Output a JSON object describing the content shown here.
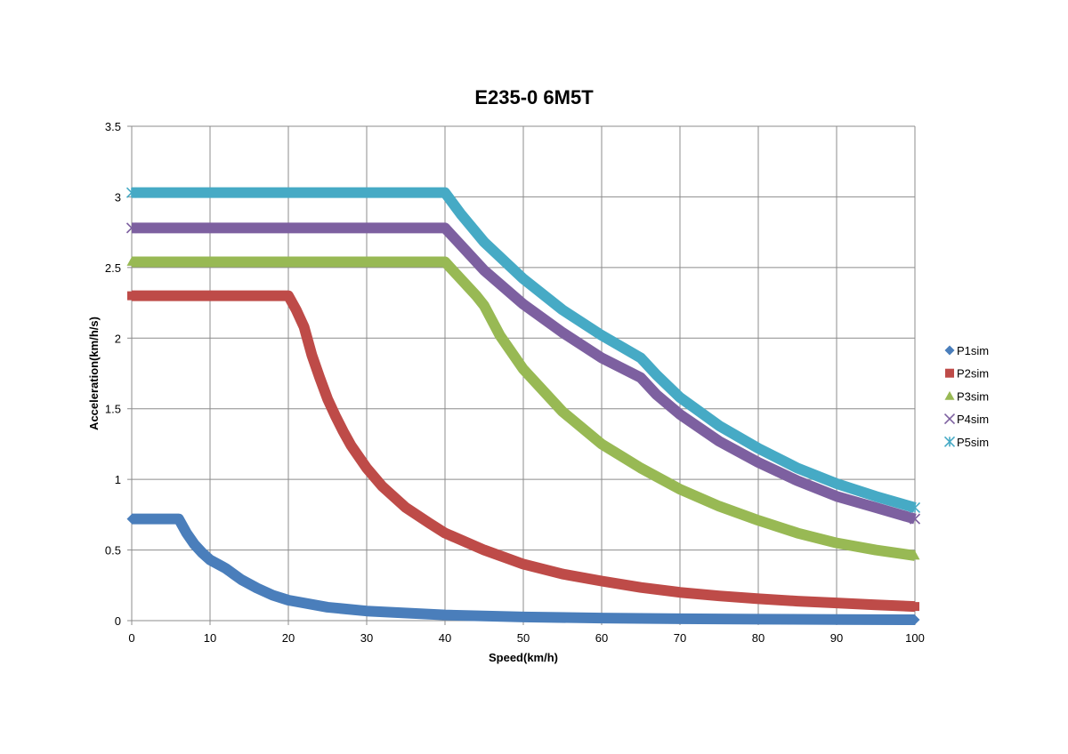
{
  "chart_data": {
    "type": "scatter",
    "title": "E235-0 6M5T",
    "xlabel": "Speed(km/h)",
    "ylabel": "Acceleration(km/h/s)",
    "xlim": [
      0,
      100
    ],
    "ylim": [
      0,
      3.5
    ],
    "xticks": [
      "0",
      "10",
      "20",
      "30",
      "40",
      "50",
      "60",
      "70",
      "80",
      "90",
      "100"
    ],
    "yticks": [
      "0",
      "0.5",
      "1",
      "1.5",
      "2",
      "2.5",
      "3",
      "3.5"
    ],
    "grid": true,
    "legend_position": "right",
    "series": [
      {
        "name": "P1sim",
        "color": "#4a7ebb",
        "marker": "diamond",
        "points": [
          [
            0,
            0.72
          ],
          [
            6,
            0.72
          ],
          [
            7,
            0.62
          ],
          [
            8,
            0.54
          ],
          [
            9,
            0.48
          ],
          [
            10,
            0.43
          ],
          [
            11,
            0.4
          ],
          [
            12,
            0.37
          ],
          [
            13,
            0.33
          ],
          [
            14,
            0.29
          ],
          [
            16,
            0.23
          ],
          [
            18,
            0.18
          ],
          [
            20,
            0.145
          ],
          [
            25,
            0.095
          ],
          [
            30,
            0.068
          ],
          [
            40,
            0.04
          ],
          [
            50,
            0.026
          ],
          [
            60,
            0.018
          ],
          [
            70,
            0.013
          ],
          [
            80,
            0.01
          ],
          [
            90,
            0.008
          ],
          [
            100,
            0.006
          ]
        ]
      },
      {
        "name": "P2sim",
        "color": "#be4b48",
        "marker": "square",
        "points": [
          [
            0,
            2.3
          ],
          [
            20,
            2.3
          ],
          [
            21,
            2.2
          ],
          [
            22,
            2.08
          ],
          [
            23,
            1.88
          ],
          [
            24,
            1.72
          ],
          [
            25,
            1.57
          ],
          [
            26,
            1.45
          ],
          [
            27,
            1.34
          ],
          [
            28,
            1.24
          ],
          [
            30,
            1.08
          ],
          [
            32,
            0.95
          ],
          [
            35,
            0.8
          ],
          [
            38,
            0.69
          ],
          [
            40,
            0.62
          ],
          [
            45,
            0.5
          ],
          [
            50,
            0.4
          ],
          [
            55,
            0.33
          ],
          [
            60,
            0.28
          ],
          [
            65,
            0.235
          ],
          [
            70,
            0.2
          ],
          [
            75,
            0.175
          ],
          [
            80,
            0.155
          ],
          [
            85,
            0.138
          ],
          [
            90,
            0.125
          ],
          [
            95,
            0.112
          ],
          [
            100,
            0.1
          ]
        ]
      },
      {
        "name": "P3sim",
        "color": "#98b954",
        "marker": "triangle",
        "points": [
          [
            0,
            2.54
          ],
          [
            40,
            2.54
          ],
          [
            42,
            2.42
          ],
          [
            44,
            2.3
          ],
          [
            45,
            2.23
          ],
          [
            47,
            2.02
          ],
          [
            50,
            1.78
          ],
          [
            55,
            1.48
          ],
          [
            60,
            1.25
          ],
          [
            65,
            1.08
          ],
          [
            70,
            0.93
          ],
          [
            75,
            0.81
          ],
          [
            80,
            0.71
          ],
          [
            85,
            0.62
          ],
          [
            90,
            0.55
          ],
          [
            95,
            0.5
          ],
          [
            100,
            0.46
          ]
        ]
      },
      {
        "name": "P4sim",
        "color": "#7d60a0",
        "marker": "x",
        "points": [
          [
            0,
            2.78
          ],
          [
            40,
            2.78
          ],
          [
            42,
            2.66
          ],
          [
            45,
            2.48
          ],
          [
            50,
            2.24
          ],
          [
            55,
            2.04
          ],
          [
            60,
            1.86
          ],
          [
            65,
            1.72
          ],
          [
            67,
            1.6
          ],
          [
            70,
            1.46
          ],
          [
            75,
            1.27
          ],
          [
            80,
            1.12
          ],
          [
            85,
            0.99
          ],
          [
            90,
            0.88
          ],
          [
            95,
            0.8
          ],
          [
            100,
            0.72
          ]
        ]
      },
      {
        "name": "P5sim",
        "color": "#46aac5",
        "marker": "asterisk",
        "points": [
          [
            0,
            3.03
          ],
          [
            40,
            3.03
          ],
          [
            42,
            2.88
          ],
          [
            45,
            2.68
          ],
          [
            50,
            2.42
          ],
          [
            55,
            2.2
          ],
          [
            60,
            2.02
          ],
          [
            65,
            1.86
          ],
          [
            67,
            1.74
          ],
          [
            70,
            1.58
          ],
          [
            75,
            1.38
          ],
          [
            80,
            1.22
          ],
          [
            85,
            1.08
          ],
          [
            90,
            0.97
          ],
          [
            95,
            0.88
          ],
          [
            100,
            0.8
          ]
        ]
      }
    ]
  }
}
